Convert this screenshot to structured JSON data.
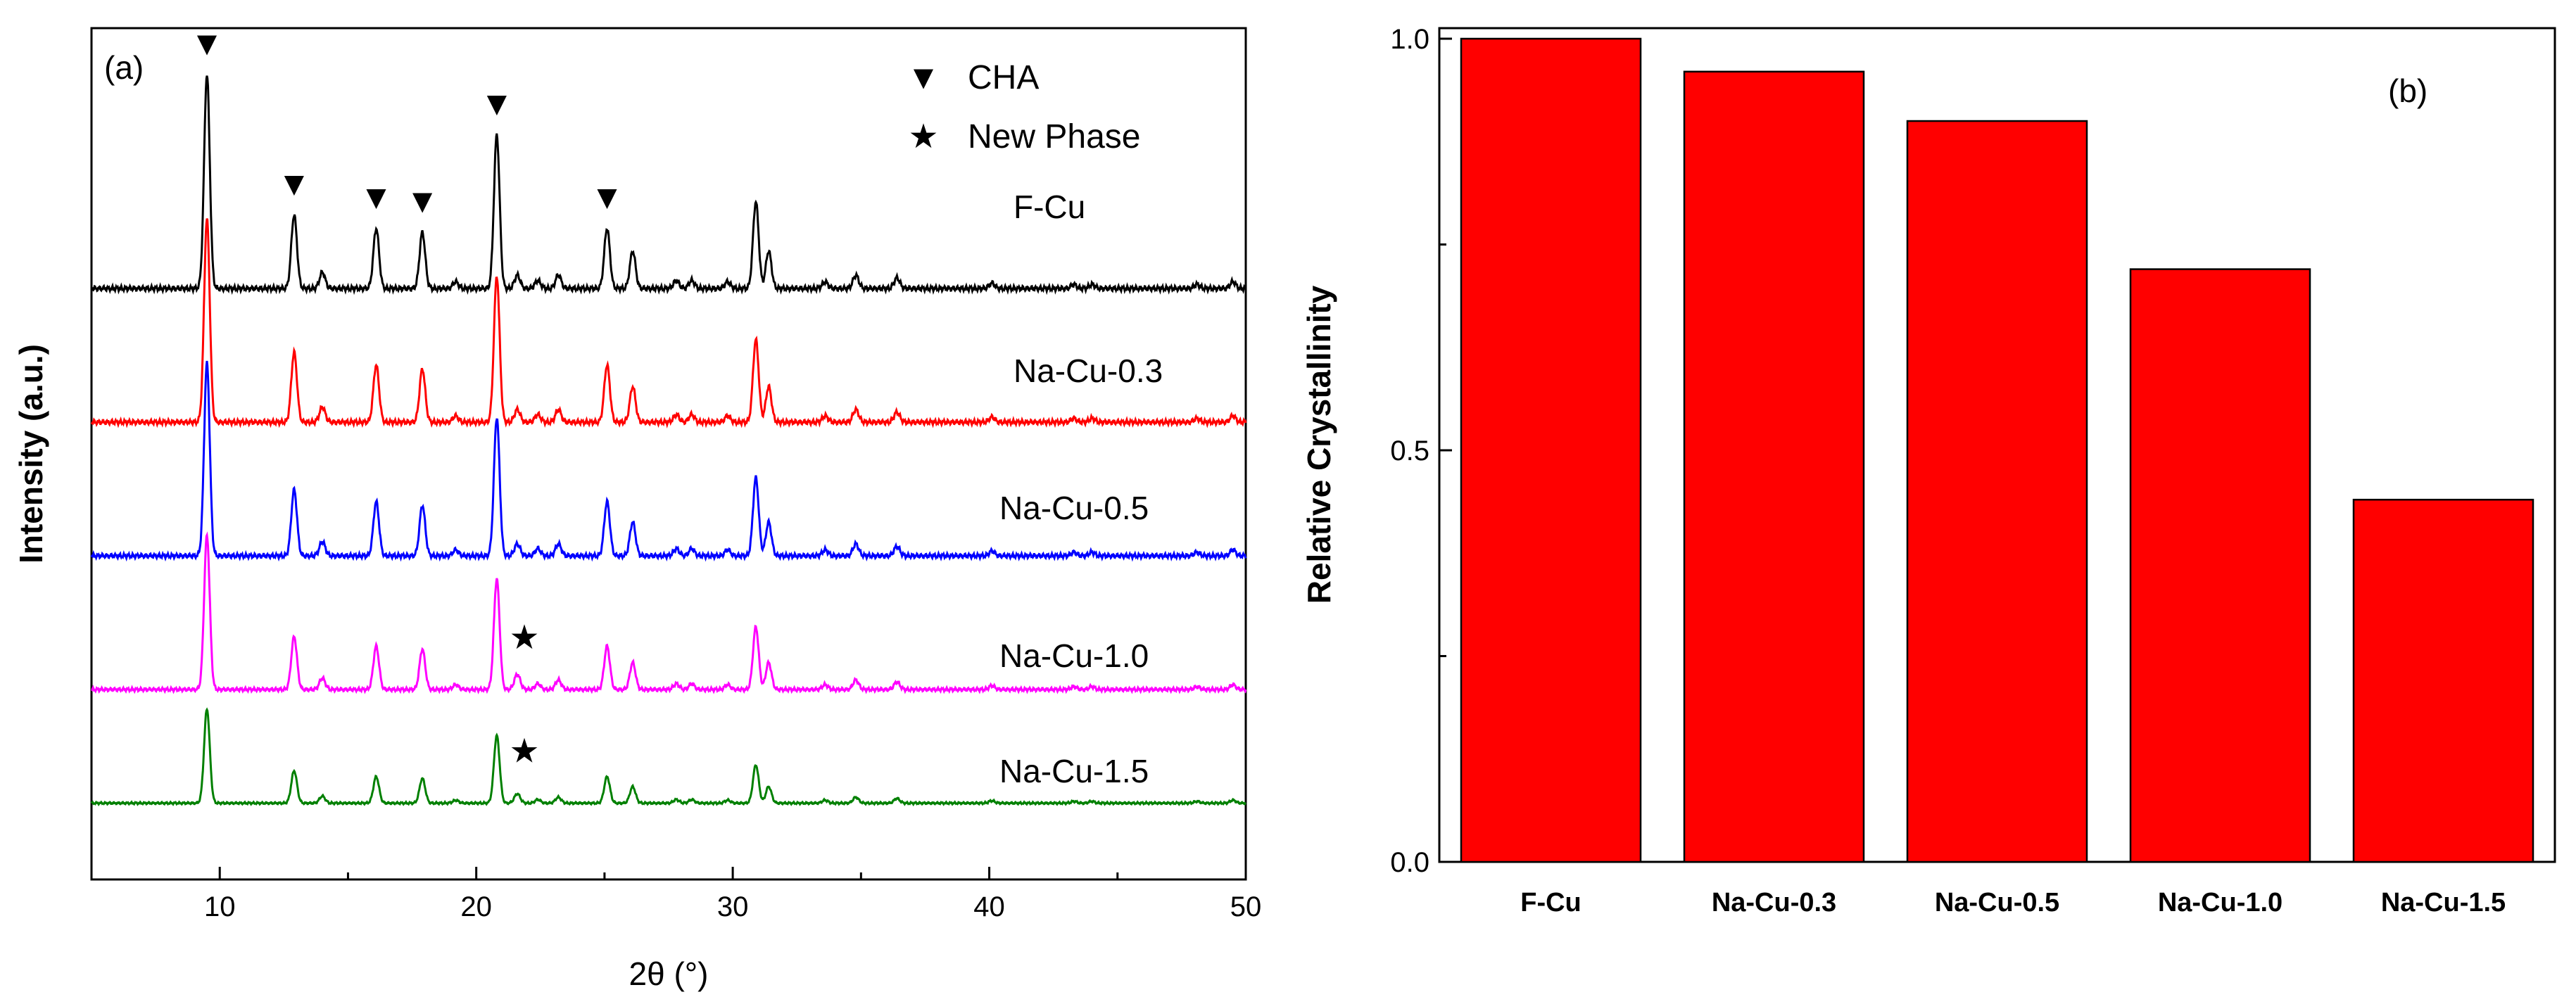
{
  "colors": {
    "F-Cu": "#000000",
    "Na-Cu-0.3": "#ff0000",
    "Na-Cu-0.5": "#0000ff",
    "Na-Cu-1.0": "#ff00ff",
    "Na-Cu-1.5": "#008000",
    "bar_fill": "#ff0000",
    "bar_edge": "#000000"
  },
  "chart_data": [
    {
      "type": "line",
      "panel_label": "(a)",
      "title": "",
      "xlabel": "2θ (°)",
      "ylabel": "Intensity (a.u.)",
      "xlim": [
        5,
        50
      ],
      "xticks": [
        "10",
        "20",
        "30",
        "40",
        "50"
      ],
      "legend": [
        {
          "marker": "▼",
          "label": "CHA"
        },
        {
          "marker": "★",
          "label": "New Phase"
        }
      ],
      "series": [
        {
          "name": "F-Cu",
          "offset": 4.0,
          "scale": 1.0,
          "new_phase": false
        },
        {
          "name": "Na-Cu-0.3",
          "offset": 3.0,
          "scale": 0.95,
          "new_phase": false
        },
        {
          "name": "Na-Cu-0.5",
          "offset": 2.0,
          "scale": 0.9,
          "new_phase": false
        },
        {
          "name": "Na-Cu-1.0",
          "offset": 1.0,
          "scale": 0.72,
          "new_phase": true
        },
        {
          "name": "Na-Cu-1.5",
          "offset": 0.15,
          "scale": 0.44,
          "new_phase": true
        }
      ],
      "peaks": [
        {
          "x": 9.5,
          "h": 1.6
        },
        {
          "x": 12.9,
          "h": 0.55
        },
        {
          "x": 14.0,
          "h": 0.12
        },
        {
          "x": 16.1,
          "h": 0.45
        },
        {
          "x": 17.9,
          "h": 0.42
        },
        {
          "x": 19.2,
          "h": 0.05
        },
        {
          "x": 20.8,
          "h": 1.15
        },
        {
          "x": 21.6,
          "h": 0.1
        },
        {
          "x": 22.4,
          "h": 0.06
        },
        {
          "x": 23.2,
          "h": 0.1
        },
        {
          "x": 25.1,
          "h": 0.45
        },
        {
          "x": 26.1,
          "h": 0.28
        },
        {
          "x": 27.8,
          "h": 0.06
        },
        {
          "x": 28.4,
          "h": 0.06
        },
        {
          "x": 29.8,
          "h": 0.05
        },
        {
          "x": 30.9,
          "h": 0.65
        },
        {
          "x": 31.4,
          "h": 0.28
        },
        {
          "x": 33.6,
          "h": 0.05
        },
        {
          "x": 34.8,
          "h": 0.1
        },
        {
          "x": 36.4,
          "h": 0.08
        },
        {
          "x": 40.1,
          "h": 0.04
        },
        {
          "x": 43.3,
          "h": 0.03
        },
        {
          "x": 44.0,
          "h": 0.03
        },
        {
          "x": 48.1,
          "h": 0.03
        },
        {
          "x": 49.5,
          "h": 0.05
        }
      ],
      "cha_markers_x": [
        9.5,
        12.9,
        16.1,
        17.9,
        20.8,
        25.1
      ],
      "new_phase_x": 21.6
    },
    {
      "type": "bar",
      "panel_label": "(b)",
      "title": "",
      "xlabel": "",
      "ylabel": "Relative Crystallinity",
      "categories": [
        "F-Cu",
        "Na-Cu-0.3",
        "Na-Cu-0.5",
        "Na-Cu-1.0",
        "Na-Cu-1.5"
      ],
      "values": [
        1.0,
        0.96,
        0.9,
        0.72,
        0.44
      ],
      "ylim": [
        0,
        1
      ],
      "yticks": [
        "0.0",
        "0.5",
        "1.0"
      ]
    }
  ]
}
